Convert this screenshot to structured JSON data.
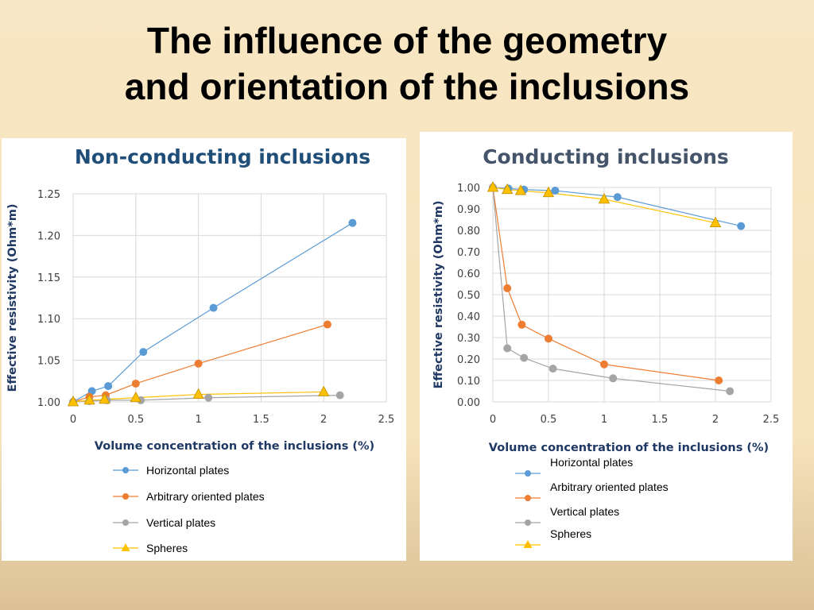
{
  "slide": {
    "title_line1": "The influence of the geometry",
    "title_line2": "and orientation of the inclusions"
  },
  "colors": {
    "horizontal": "#5b9bd5",
    "arbitrary": "#ed7d31",
    "vertical": "#a5a5a5",
    "spheres": "#ffc000",
    "title_left": "#1f4e79",
    "title_right": "#44546a",
    "axis_title": "#1f3864",
    "grid": "#d9d9d9"
  },
  "chart_data": [
    {
      "type": "scatter",
      "title": "Non-conducting inclusions",
      "xlabel": "Volume concentration of the inclusions (%)",
      "ylabel": "Effective resistivity (Ohm*m)",
      "xlim": [
        0,
        2.5
      ],
      "ylim": [
        1.0,
        1.25
      ],
      "x_ticks": [
        "0",
        "0.5",
        "1",
        "1.5",
        "2",
        "2.5"
      ],
      "y_ticks": [
        "1.00",
        "1.05",
        "1.10",
        "1.15",
        "1.20",
        "1.25"
      ],
      "grid": true,
      "legend_position": "bottom",
      "series": [
        {
          "name": "Horizontal plates",
          "x": [
            0,
            0.15,
            0.28,
            0.56,
            1.12,
            2.23
          ],
          "y": [
            1.0,
            1.013,
            1.019,
            1.06,
            1.113,
            1.215
          ]
        },
        {
          "name": "Arbitrary oriented plates",
          "x": [
            0,
            0.13,
            0.26,
            0.5,
            1.0,
            2.03
          ],
          "y": [
            1.0,
            1.006,
            1.008,
            1.022,
            1.046,
            1.093
          ]
        },
        {
          "name": "Vertical plates",
          "x": [
            0,
            0.13,
            0.27,
            0.54,
            1.08,
            2.13
          ],
          "y": [
            1.0,
            1.001,
            1.002,
            1.002,
            1.005,
            1.008
          ]
        },
        {
          "name": "Spheres",
          "x": [
            0,
            0.13,
            0.25,
            0.5,
            1.0,
            2.0
          ],
          "y": [
            1.0,
            1.002,
            1.003,
            1.005,
            1.009,
            1.012
          ]
        }
      ]
    },
    {
      "type": "scatter",
      "title": "Conducting inclusions",
      "xlabel": "Volume concentration of the inclusions (%)",
      "ylabel": "Effective resistivity (Ohm*m)",
      "xlim": [
        0,
        2.5
      ],
      "ylim": [
        0,
        1.0
      ],
      "x_ticks": [
        "0",
        "0.5",
        "1",
        "1.5",
        "2",
        "2.5"
      ],
      "y_ticks": [
        "0.00",
        "0.10",
        "0.20",
        "0.30",
        "0.40",
        "0.50",
        "0.60",
        "0.70",
        "0.80",
        "0.90",
        "1.00"
      ],
      "grid": true,
      "legend_position": "bottom",
      "series": [
        {
          "name": "Horizontal plates",
          "x": [
            0,
            0.14,
            0.28,
            0.56,
            1.12,
            2.23
          ],
          "y": [
            1.0,
            0.995,
            0.99,
            0.985,
            0.955,
            0.82
          ]
        },
        {
          "name": "Arbitrary oriented plates",
          "x": [
            0,
            0.13,
            0.26,
            0.5,
            1.0,
            2.03
          ],
          "y": [
            1.0,
            0.53,
            0.36,
            0.295,
            0.175,
            0.1
          ]
        },
        {
          "name": "Vertical plates",
          "x": [
            0,
            0.13,
            0.28,
            0.54,
            1.08,
            2.13
          ],
          "y": [
            1.0,
            0.25,
            0.205,
            0.155,
            0.11,
            0.05
          ]
        },
        {
          "name": "Spheres",
          "x": [
            0,
            0.13,
            0.25,
            0.5,
            1.0,
            2.0
          ],
          "y": [
            1.0,
            0.99,
            0.985,
            0.975,
            0.945,
            0.835
          ]
        }
      ]
    }
  ]
}
